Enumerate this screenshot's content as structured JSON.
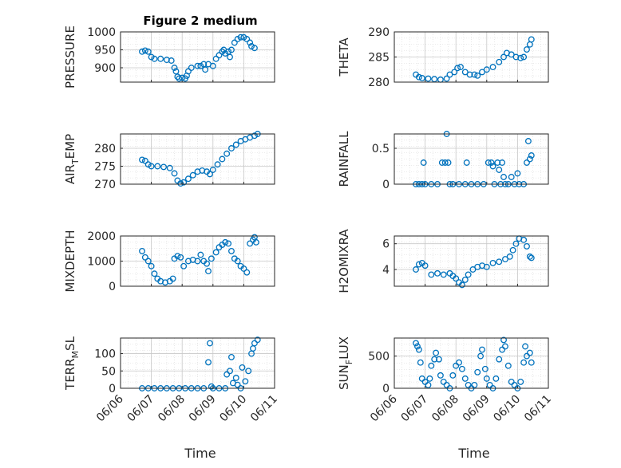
{
  "figure": {
    "title": "Figure 2 medium",
    "xlabel": "Time"
  },
  "colors": {
    "marker": "#0072BD",
    "axis": "#262626",
    "grid": "#d9d9d9"
  },
  "chart_data": [
    {
      "type": "scatter",
      "ylabel": "PRESSURE",
      "ylim": [
        860,
        1000
      ],
      "yticks": [
        "1000",
        "950",
        "900"
      ],
      "ytick_values": [
        1000,
        950,
        900
      ],
      "xlim": [
        6.0,
        11.0
      ],
      "points": [
        [
          6.7,
          945
        ],
        [
          6.8,
          948
        ],
        [
          6.9,
          945
        ],
        [
          7.0,
          930
        ],
        [
          7.1,
          925
        ],
        [
          7.3,
          925
        ],
        [
          7.5,
          922
        ],
        [
          7.65,
          920
        ],
        [
          7.75,
          900
        ],
        [
          7.8,
          890
        ],
        [
          7.85,
          875
        ],
        [
          7.9,
          870
        ],
        [
          8.0,
          872
        ],
        [
          8.1,
          870
        ],
        [
          8.15,
          878
        ],
        [
          8.2,
          890
        ],
        [
          8.3,
          900
        ],
        [
          8.5,
          905
        ],
        [
          8.6,
          905
        ],
        [
          8.7,
          910
        ],
        [
          8.75,
          895
        ],
        [
          8.85,
          910
        ],
        [
          9.0,
          905
        ],
        [
          9.1,
          925
        ],
        [
          9.2,
          935
        ],
        [
          9.3,
          945
        ],
        [
          9.35,
          950
        ],
        [
          9.4,
          940
        ],
        [
          9.5,
          945
        ],
        [
          9.55,
          930
        ],
        [
          9.6,
          950
        ],
        [
          9.7,
          970
        ],
        [
          9.8,
          980
        ],
        [
          9.9,
          985
        ],
        [
          10.0,
          985
        ],
        [
          10.1,
          980
        ],
        [
          10.2,
          970
        ],
        [
          10.25,
          960
        ],
        [
          10.35,
          955
        ]
      ]
    },
    {
      "type": "scatter",
      "ylabel": "THETA",
      "ylim": [
        280,
        290
      ],
      "yticks": [
        "290",
        "285",
        "280"
      ],
      "ytick_values": [
        290,
        285,
        280
      ],
      "xlim": [
        6.0,
        11.0
      ],
      "points": [
        [
          6.7,
          281.5
        ],
        [
          6.8,
          281.0
        ],
        [
          6.9,
          280.8
        ],
        [
          7.1,
          280.7
        ],
        [
          7.3,
          280.6
        ],
        [
          7.5,
          280.5
        ],
        [
          7.7,
          280.7
        ],
        [
          7.8,
          281.5
        ],
        [
          7.95,
          282.0
        ],
        [
          8.05,
          282.8
        ],
        [
          8.15,
          283.0
        ],
        [
          8.3,
          282.0
        ],
        [
          8.45,
          281.5
        ],
        [
          8.6,
          281.5
        ],
        [
          8.7,
          281.3
        ],
        [
          8.85,
          282.0
        ],
        [
          9.0,
          282.5
        ],
        [
          9.2,
          283.0
        ],
        [
          9.4,
          284.0
        ],
        [
          9.55,
          285.0
        ],
        [
          9.65,
          285.8
        ],
        [
          9.8,
          285.5
        ],
        [
          9.95,
          285.0
        ],
        [
          10.1,
          284.8
        ],
        [
          10.2,
          285.0
        ],
        [
          10.3,
          286.5
        ],
        [
          10.4,
          287.5
        ],
        [
          10.45,
          288.5
        ]
      ]
    },
    {
      "type": "scatter",
      "ylabel": "AIR_TEMP",
      "ylabel_main": "AIR",
      "ylabel_sub": "T",
      "ylabel_rest": "EMP",
      "ylim": [
        270,
        284
      ],
      "yticks": [
        "280",
        "275",
        "270"
      ],
      "ytick_values": [
        280,
        275,
        270
      ],
      "xlim": [
        6.0,
        11.0
      ],
      "points": [
        [
          6.7,
          276.8
        ],
        [
          6.8,
          276.5
        ],
        [
          6.9,
          275.5
        ],
        [
          7.0,
          275.0
        ],
        [
          7.2,
          275.0
        ],
        [
          7.4,
          274.8
        ],
        [
          7.6,
          274.5
        ],
        [
          7.75,
          273.0
        ],
        [
          7.85,
          271.0
        ],
        [
          7.95,
          270.2
        ],
        [
          8.05,
          270.5
        ],
        [
          8.2,
          271.5
        ],
        [
          8.35,
          272.5
        ],
        [
          8.5,
          273.5
        ],
        [
          8.65,
          273.8
        ],
        [
          8.8,
          273.5
        ],
        [
          8.9,
          272.8
        ],
        [
          9.0,
          274.0
        ],
        [
          9.15,
          275.5
        ],
        [
          9.3,
          277.0
        ],
        [
          9.45,
          278.5
        ],
        [
          9.6,
          280.0
        ],
        [
          9.75,
          281.0
        ],
        [
          9.9,
          282.0
        ],
        [
          10.05,
          282.5
        ],
        [
          10.2,
          283.0
        ],
        [
          10.35,
          283.5
        ],
        [
          10.45,
          284.0
        ]
      ]
    },
    {
      "type": "scatter",
      "ylabel": "RAINFALL",
      "ylim": [
        0,
        0.7
      ],
      "yticks": [
        "0.5",
        "0"
      ],
      "ytick_values": [
        0.5,
        0
      ],
      "xlim": [
        6.0,
        11.0
      ],
      "points": [
        [
          6.7,
          0
        ],
        [
          6.8,
          0
        ],
        [
          6.9,
          0
        ],
        [
          6.95,
          0.3
        ],
        [
          7.0,
          0
        ],
        [
          7.2,
          0
        ],
        [
          7.4,
          0
        ],
        [
          7.55,
          0.3
        ],
        [
          7.65,
          0.3
        ],
        [
          7.7,
          0.7
        ],
        [
          7.75,
          0.3
        ],
        [
          7.8,
          0
        ],
        [
          7.9,
          0
        ],
        [
          8.1,
          0
        ],
        [
          8.3,
          0
        ],
        [
          8.35,
          0.3
        ],
        [
          8.5,
          0
        ],
        [
          8.7,
          0
        ],
        [
          8.9,
          0
        ],
        [
          9.05,
          0.3
        ],
        [
          9.15,
          0.3
        ],
        [
          9.2,
          0.25
        ],
        [
          9.25,
          0
        ],
        [
          9.35,
          0.3
        ],
        [
          9.4,
          0.2
        ],
        [
          9.45,
          0
        ],
        [
          9.5,
          0.3
        ],
        [
          9.55,
          0.1
        ],
        [
          9.6,
          0
        ],
        [
          9.7,
          0
        ],
        [
          9.8,
          0.1
        ],
        [
          9.9,
          0
        ],
        [
          10.0,
          0.15
        ],
        [
          10.05,
          0
        ],
        [
          10.2,
          0
        ],
        [
          10.3,
          0.3
        ],
        [
          10.35,
          0.6
        ],
        [
          10.4,
          0.35
        ],
        [
          10.45,
          0.4
        ]
      ]
    },
    {
      "type": "scatter",
      "ylabel": "MIXDEPTH",
      "ylim": [
        0,
        2000
      ],
      "yticks": [
        "2000",
        "1000",
        "0"
      ],
      "ytick_values": [
        2000,
        1000,
        0
      ],
      "xlim": [
        6.0,
        11.0
      ],
      "points": [
        [
          6.7,
          1400
        ],
        [
          6.8,
          1150
        ],
        [
          6.9,
          1000
        ],
        [
          7.0,
          800
        ],
        [
          7.1,
          500
        ],
        [
          7.2,
          300
        ],
        [
          7.3,
          200
        ],
        [
          7.45,
          150
        ],
        [
          7.6,
          200
        ],
        [
          7.7,
          300
        ],
        [
          7.75,
          1100
        ],
        [
          7.85,
          1200
        ],
        [
          7.95,
          1150
        ],
        [
          8.05,
          800
        ],
        [
          8.2,
          1000
        ],
        [
          8.35,
          1050
        ],
        [
          8.5,
          1000
        ],
        [
          8.6,
          1250
        ],
        [
          8.7,
          1000
        ],
        [
          8.8,
          900
        ],
        [
          8.85,
          600
        ],
        [
          8.95,
          1100
        ],
        [
          9.1,
          1350
        ],
        [
          9.2,
          1550
        ],
        [
          9.3,
          1650
        ],
        [
          9.4,
          1750
        ],
        [
          9.5,
          1700
        ],
        [
          9.6,
          1400
        ],
        [
          9.7,
          1100
        ],
        [
          9.8,
          1000
        ],
        [
          9.9,
          800
        ],
        [
          10.0,
          700
        ],
        [
          10.1,
          550
        ],
        [
          10.2,
          1700
        ],
        [
          10.3,
          1850
        ],
        [
          10.35,
          1950
        ],
        [
          10.4,
          1750
        ]
      ]
    },
    {
      "type": "scatter",
      "ylabel": "H2OMIXRA",
      "ylim": [
        2.7,
        6.6
      ],
      "yticks": [
        "6",
        "4"
      ],
      "ytick_values": [
        6,
        4
      ],
      "xlim": [
        6.0,
        11.0
      ],
      "points": [
        [
          6.7,
          4.0
        ],
        [
          6.8,
          4.4
        ],
        [
          6.9,
          4.5
        ],
        [
          7.0,
          4.3
        ],
        [
          7.2,
          3.6
        ],
        [
          7.4,
          3.7
        ],
        [
          7.6,
          3.6
        ],
        [
          7.8,
          3.7
        ],
        [
          7.9,
          3.5
        ],
        [
          8.0,
          3.3
        ],
        [
          8.1,
          3.0
        ],
        [
          8.2,
          2.8
        ],
        [
          8.3,
          3.2
        ],
        [
          8.4,
          3.6
        ],
        [
          8.55,
          4.0
        ],
        [
          8.7,
          4.2
        ],
        [
          8.85,
          4.3
        ],
        [
          9.0,
          4.2
        ],
        [
          9.2,
          4.5
        ],
        [
          9.4,
          4.6
        ],
        [
          9.6,
          4.8
        ],
        [
          9.75,
          5.0
        ],
        [
          9.85,
          5.5
        ],
        [
          9.95,
          6.0
        ],
        [
          10.05,
          6.4
        ],
        [
          10.2,
          6.3
        ],
        [
          10.3,
          5.8
        ],
        [
          10.4,
          5.0
        ],
        [
          10.45,
          4.9
        ]
      ]
    },
    {
      "type": "scatter",
      "ylabel": "TERR_MSL",
      "ylabel_main": "TERR",
      "ylabel_sub": "M",
      "ylabel_rest": "SL",
      "ylim": [
        0,
        145
      ],
      "yticks": [
        "100",
        "50",
        "0"
      ],
      "ytick_values": [
        100,
        50,
        0
      ],
      "xlim": [
        6.0,
        11.0
      ],
      "points": [
        [
          6.7,
          0
        ],
        [
          6.9,
          0
        ],
        [
          7.1,
          0
        ],
        [
          7.3,
          0
        ],
        [
          7.5,
          0
        ],
        [
          7.7,
          0
        ],
        [
          7.9,
          0
        ],
        [
          8.1,
          0
        ],
        [
          8.3,
          0
        ],
        [
          8.5,
          0
        ],
        [
          8.7,
          0
        ],
        [
          8.85,
          75
        ],
        [
          8.9,
          130
        ],
        [
          8.95,
          5
        ],
        [
          9.0,
          0
        ],
        [
          9.2,
          0
        ],
        [
          9.4,
          0
        ],
        [
          9.45,
          40
        ],
        [
          9.55,
          50
        ],
        [
          9.6,
          90
        ],
        [
          9.65,
          15
        ],
        [
          9.75,
          30
        ],
        [
          9.8,
          10
        ],
        [
          9.9,
          0
        ],
        [
          9.95,
          60
        ],
        [
          10.05,
          20
        ],
        [
          10.15,
          50
        ],
        [
          10.25,
          100
        ],
        [
          10.3,
          115
        ],
        [
          10.35,
          130
        ],
        [
          10.45,
          140
        ]
      ]
    },
    {
      "type": "scatter",
      "ylabel": "SUN_FLUX",
      "ylabel_main": "SUN",
      "ylabel_sub": "F",
      "ylabel_rest": "LUX",
      "ylim": [
        0,
        780
      ],
      "yticks": [
        "500",
        "0"
      ],
      "ytick_values": [
        500,
        0
      ],
      "xlim": [
        6.0,
        11.0
      ],
      "points": [
        [
          6.7,
          700
        ],
        [
          6.75,
          650
        ],
        [
          6.8,
          600
        ],
        [
          6.85,
          400
        ],
        [
          6.9,
          150
        ],
        [
          7.0,
          100
        ],
        [
          7.1,
          50
        ],
        [
          7.15,
          150
        ],
        [
          7.2,
          350
        ],
        [
          7.3,
          450
        ],
        [
          7.35,
          550
        ],
        [
          7.45,
          450
        ],
        [
          7.5,
          200
        ],
        [
          7.6,
          100
        ],
        [
          7.7,
          50
        ],
        [
          7.8,
          0
        ],
        [
          7.9,
          200
        ],
        [
          8.0,
          350
        ],
        [
          8.1,
          400
        ],
        [
          8.2,
          300
        ],
        [
          8.3,
          150
        ],
        [
          8.4,
          50
        ],
        [
          8.5,
          0
        ],
        [
          8.6,
          50
        ],
        [
          8.7,
          250
        ],
        [
          8.8,
          500
        ],
        [
          8.85,
          600
        ],
        [
          8.95,
          300
        ],
        [
          9.0,
          150
        ],
        [
          9.1,
          50
        ],
        [
          9.2,
          0
        ],
        [
          9.3,
          150
        ],
        [
          9.4,
          450
        ],
        [
          9.5,
          600
        ],
        [
          9.55,
          750
        ],
        [
          9.6,
          650
        ],
        [
          9.7,
          350
        ],
        [
          9.8,
          100
        ],
        [
          9.9,
          50
        ],
        [
          10.0,
          0
        ],
        [
          10.1,
          100
        ],
        [
          10.2,
          400
        ],
        [
          10.25,
          650
        ],
        [
          10.3,
          500
        ],
        [
          10.4,
          550
        ],
        [
          10.45,
          400
        ]
      ]
    }
  ],
  "x_axis": {
    "ticks": [
      "06/06",
      "06/07",
      "06/08",
      "06/09",
      "06/10",
      "06/11"
    ],
    "tick_values": [
      6,
      7,
      8,
      9,
      10,
      11
    ]
  }
}
